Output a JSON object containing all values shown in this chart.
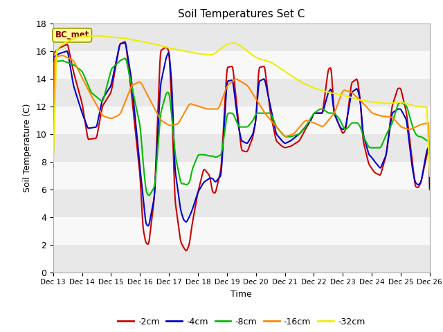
{
  "title": "Soil Temperatures Set C",
  "xlabel": "Time",
  "ylabel": "Soil Temperature (C)",
  "ylim": [
    0,
    18
  ],
  "yticks": [
    0,
    2,
    4,
    6,
    8,
    10,
    12,
    14,
    16,
    18
  ],
  "xtick_labels": [
    "Dec 13",
    "Dec 14",
    "Dec 15",
    "Dec 16",
    "Dec 17",
    "Dec 18",
    "Dec 19",
    "Dec 20",
    "Dec 21",
    "Dec 22",
    "Dec 23",
    "Dec 24",
    "Dec 25",
    "Dec 26"
  ],
  "legend_label": "BC_met",
  "series_colors": [
    "#cc0000",
    "#0000cc",
    "#00bb00",
    "#ff8800",
    "#eeee00"
  ],
  "series_labels": [
    "-2cm",
    "-4cm",
    "-8cm",
    "-16cm",
    "-32cm"
  ],
  "fig_bg": "#ffffff",
  "plot_bg": "#f0f0f0",
  "band_color1": "#e8e8e8",
  "band_color2": "#f8f8f8",
  "line_width": 1.5,
  "n_points": 650
}
